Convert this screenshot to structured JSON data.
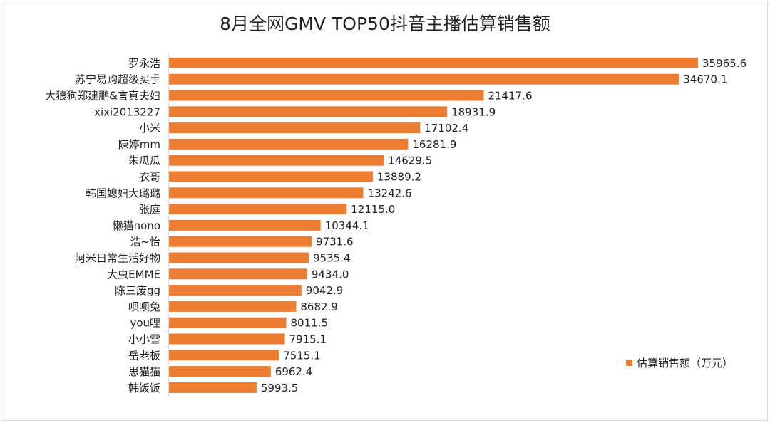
{
  "chart_data": {
    "type": "bar",
    "orientation": "horizontal",
    "title": "8月全网GMV TOP50抖音主播估算销售额",
    "categories": [
      "罗永浩",
      "苏宁易购超级买手",
      "大狼狗郑建鹏&言真夫妇",
      "xixi2013227",
      "小米",
      "陳婷mm",
      "朱瓜瓜",
      "衣哥",
      "韩国媳妇大璐璐",
      "张庭",
      "懒猫nono",
      "浩~怡",
      "阿米日常生活好物",
      "大虫EMME",
      "陈三废gg",
      "呗呗兔",
      "you哩",
      "小小雪",
      "岳老板",
      "思猫猫",
      "韩饭饭"
    ],
    "series": [
      {
        "name": "估算销售额（万元）",
        "values": [
          35965.6,
          34670.1,
          21417.6,
          18931.9,
          17102.4,
          16281.9,
          14629.5,
          13889.2,
          13242.6,
          12115.0,
          10344.1,
          9731.6,
          9535.4,
          9434.0,
          9042.9,
          8682.9,
          8011.5,
          7915.1,
          7515.1,
          6962.4,
          5993.5
        ],
        "labels": [
          "35965.6",
          "34670.1",
          "21417.6",
          "18931.9",
          "17102.4",
          "16281.9",
          "14629.5",
          "13889.2",
          "13242.6",
          "12115.0",
          "10344.1",
          "9731.6",
          "9535.4",
          "9434.0",
          "9042.9",
          "8682.9",
          "8011.5",
          "7915.1",
          "7515.1",
          "6962.4",
          "5993.5"
        ],
        "color": "#ed7d31"
      }
    ],
    "xlim": [
      0,
      36000
    ],
    "grid": false,
    "legend_position": "right"
  }
}
